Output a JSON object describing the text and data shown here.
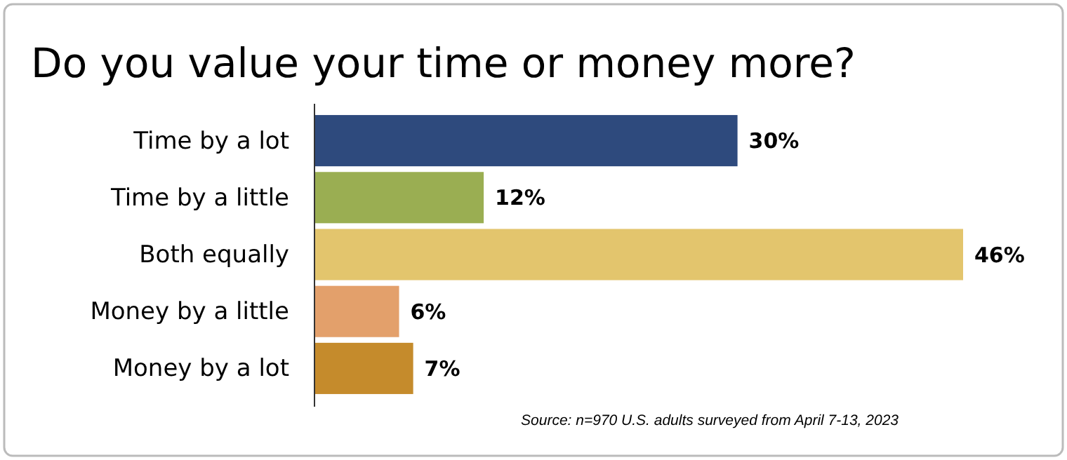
{
  "chart_data": {
    "type": "bar",
    "orientation": "horizontal",
    "title": "Do you value your time or money more?",
    "categories": [
      "Time by a lot",
      "Time by a little",
      "Both equally",
      "Money by a little",
      "Money by a lot"
    ],
    "values": [
      30,
      12,
      46,
      6,
      7
    ],
    "colors": [
      "#2e4a7d",
      "#9aae52",
      "#e3c56d",
      "#e3a06b",
      "#c58b2c"
    ],
    "value_labels": [
      "30%",
      "12%",
      "46%",
      "6%",
      "7%"
    ],
    "annotations": [
      "Source: n=970 U.S. adults surveyed from April 7-13, 2023"
    ]
  }
}
